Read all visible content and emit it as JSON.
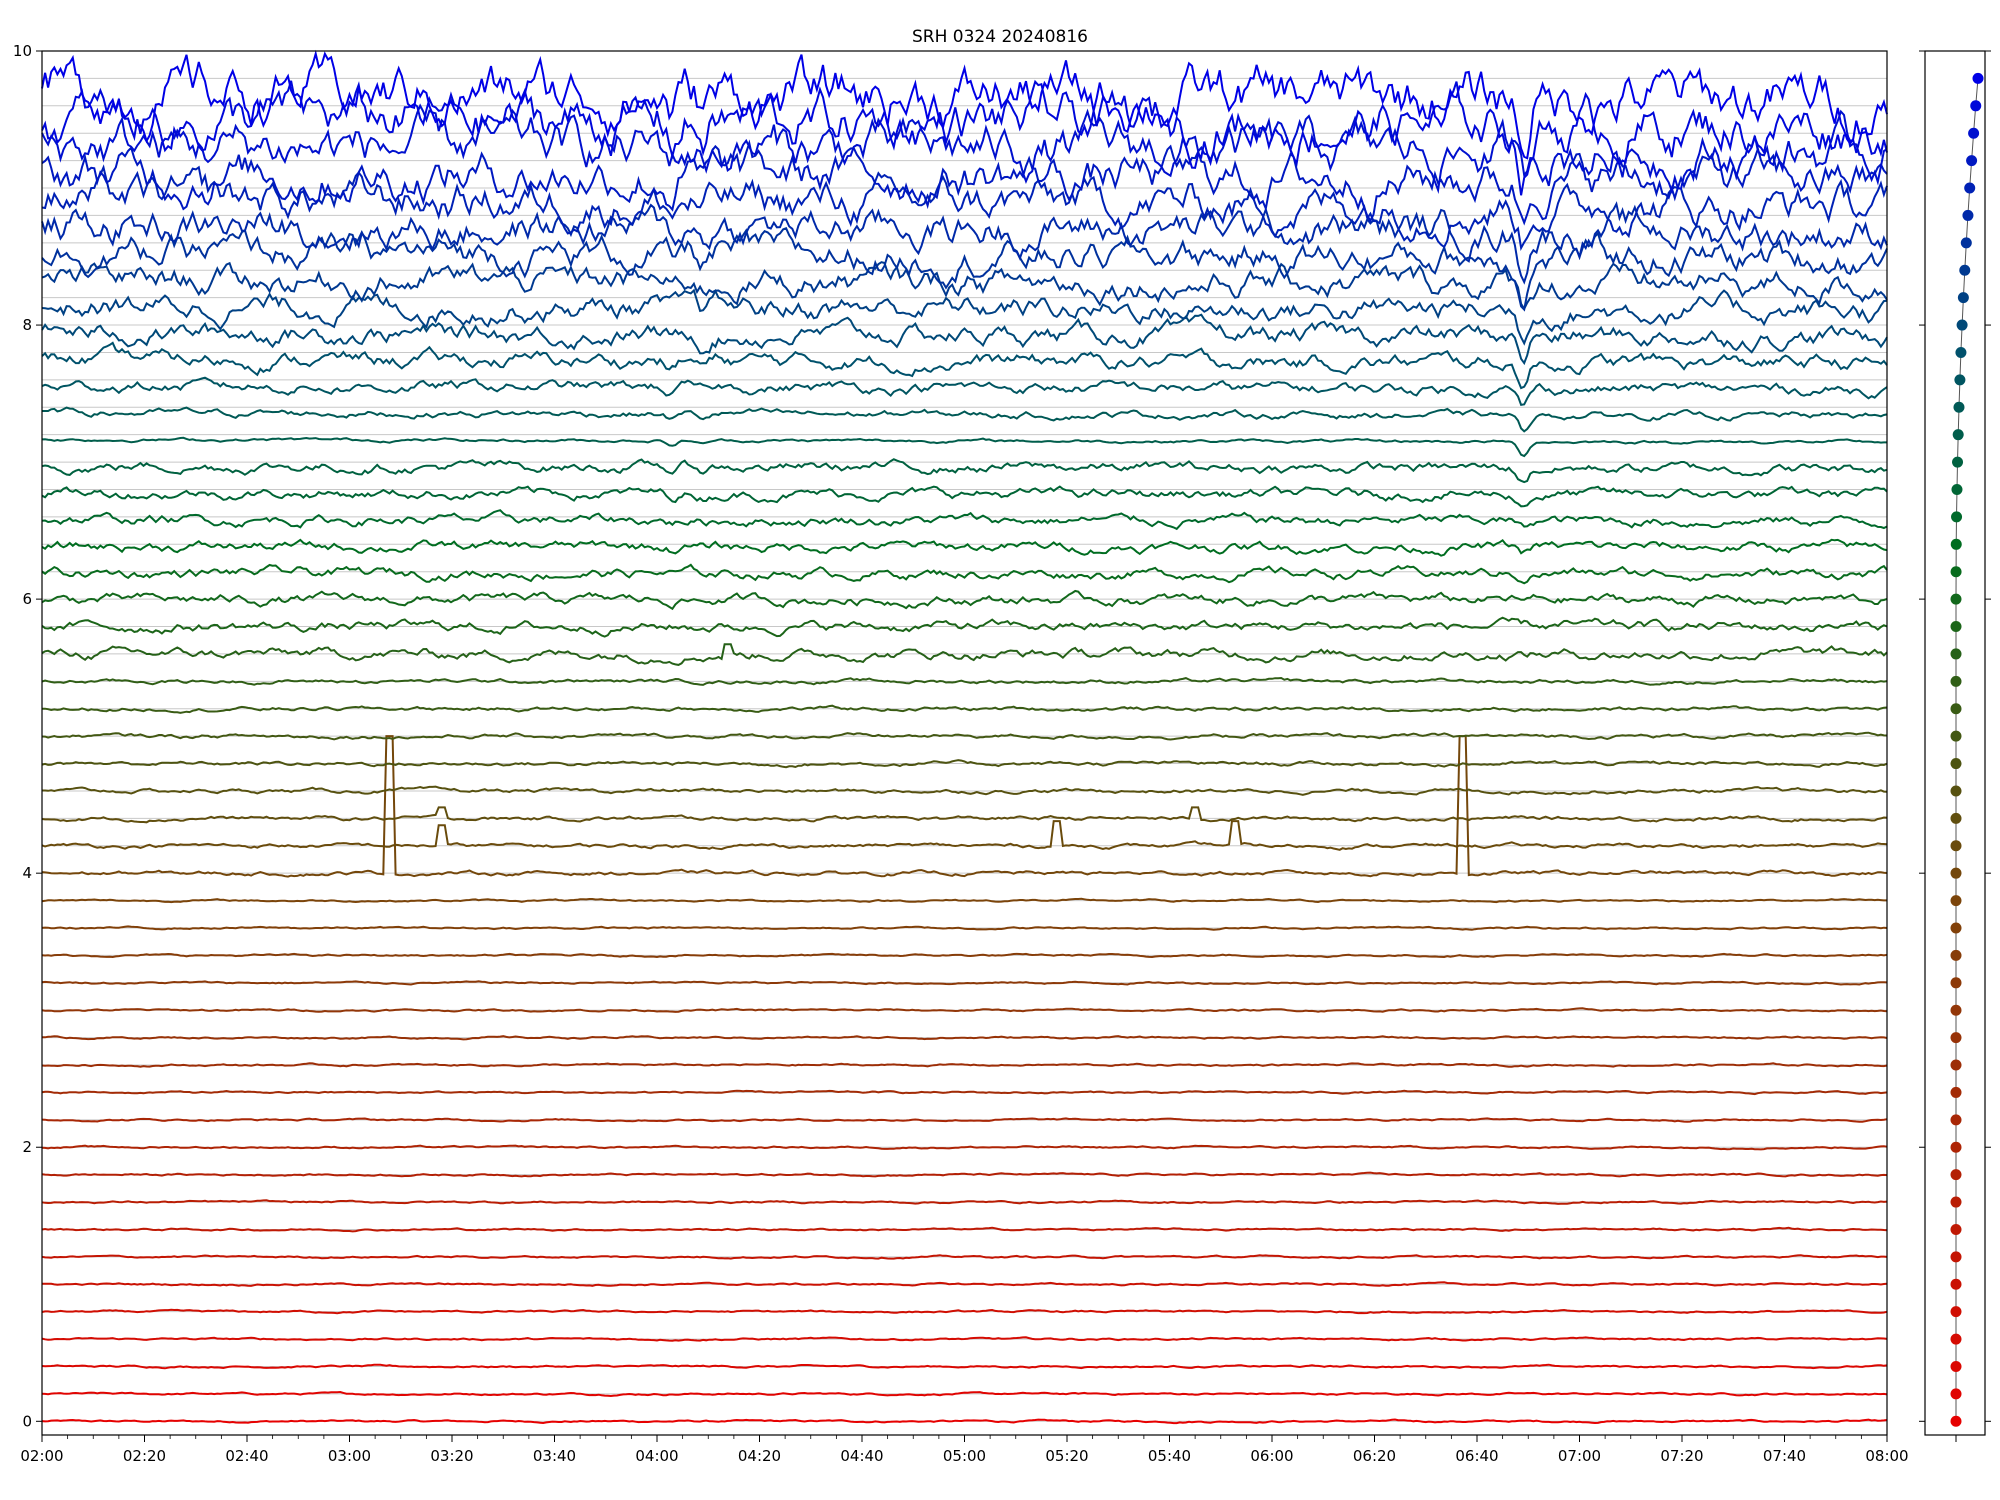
{
  "chart_data": {
    "type": "line",
    "title": "SRH 0324 20240816",
    "xlabel": "",
    "ylabel": "",
    "x_range": [
      "02:00",
      "08:00"
    ],
    "x_tick_labels": [
      "02:00",
      "02:20",
      "02:40",
      "03:00",
      "03:20",
      "03:40",
      "04:00",
      "04:20",
      "04:40",
      "05:00",
      "05:20",
      "05:40",
      "06:00",
      "06:20",
      "06:40",
      "07:00",
      "07:20",
      "07:40",
      "08:00"
    ],
    "ylim": [
      -0.1,
      10.0
    ],
    "y_tick_labels": [
      "0",
      "2",
      "4",
      "6",
      "8",
      "10"
    ],
    "grid": "horizontal lines at each trace baseline",
    "trace_count": 50,
    "trace_spacing": 0.2,
    "trace_color_order": "red (bottom) through brown and green to blue (top)",
    "spikes": [
      {
        "trace": 20,
        "time": "03:08",
        "height": 1.0
      },
      {
        "trace": 21,
        "time": "03:18",
        "height": 0.15
      },
      {
        "trace": 22,
        "time": "03:18",
        "height": 0.08
      },
      {
        "trace": 21,
        "time": "05:18",
        "height": 0.18
      },
      {
        "trace": 22,
        "time": "05:45",
        "height": 0.08
      },
      {
        "trace": 21,
        "time": "05:53",
        "height": 0.18
      },
      {
        "trace": 20,
        "time": "06:37",
        "height": 1.0
      },
      {
        "trace": 28,
        "time": "04:14",
        "height": 0.07
      }
    ],
    "dips": [
      {
        "time": "04:03",
        "depth": 0.1
      },
      {
        "time": "04:09",
        "depth": 0.08
      },
      {
        "time": "06:49",
        "depth": 0.3
      }
    ],
    "side_panel": {
      "type": "scatter",
      "description": "one marker per trace at its baseline value",
      "y_values_range": [
        0,
        9.8
      ]
    }
  }
}
